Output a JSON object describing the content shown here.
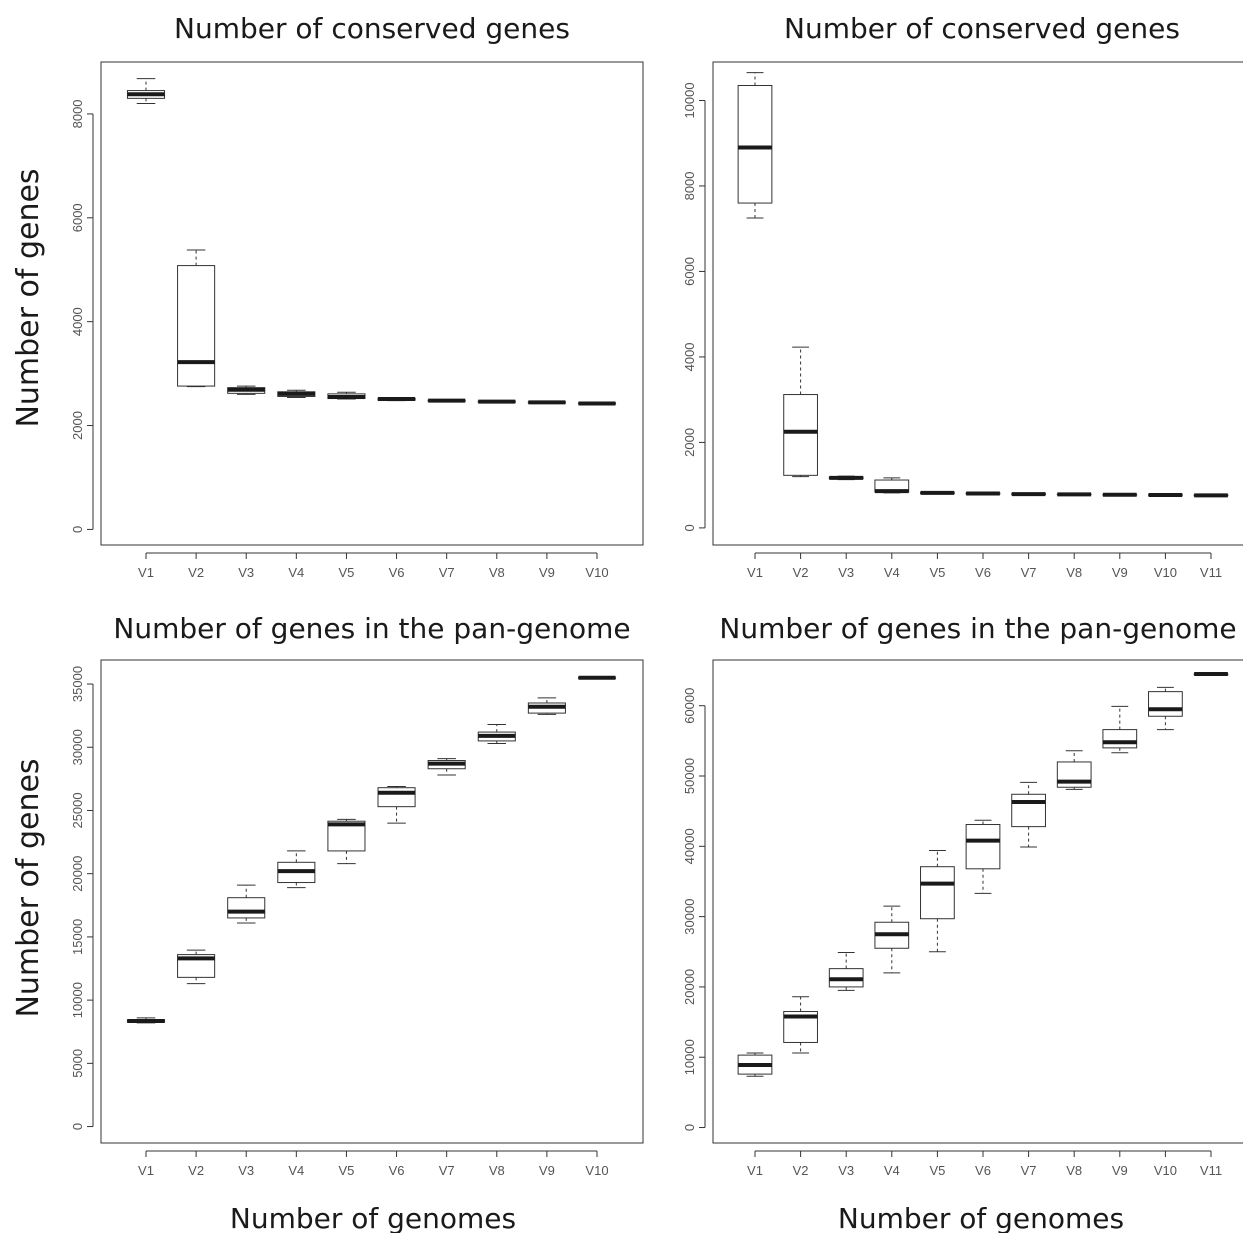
{
  "figure": {
    "shared_ylabel_top": "Number of genes",
    "shared_ylabel_bottom": "Number of genes",
    "shared_xlabel_left": "Number of genomes",
    "shared_xlabel_right": "Number of genomes"
  },
  "chart_data": [
    {
      "type": "boxplot",
      "title": "Number of conserved genes",
      "xlabel": "",
      "ylabel": "Number of genes",
      "ylim": [
        -300,
        9000
      ],
      "yticks": [
        0,
        2000,
        4000,
        6000,
        8000
      ],
      "categories": [
        "V1",
        "V2",
        "V3",
        "V4",
        "V5",
        "V6",
        "V7",
        "V8",
        "V9",
        "V10"
      ],
      "boxes": [
        {
          "min": 8200,
          "q1": 8300,
          "median": 8380,
          "q3": 8450,
          "max": 8680
        },
        {
          "min": 2750,
          "q1": 2760,
          "median": 3220,
          "q3": 5080,
          "max": 5380
        },
        {
          "min": 2600,
          "q1": 2620,
          "median": 2690,
          "q3": 2730,
          "max": 2760
        },
        {
          "min": 2540,
          "q1": 2560,
          "median": 2610,
          "q3": 2650,
          "max": 2680
        },
        {
          "min": 2510,
          "q1": 2520,
          "median": 2550,
          "q3": 2610,
          "max": 2640
        },
        {
          "min": 2480,
          "q1": 2490,
          "median": 2510,
          "q3": 2525,
          "max": 2540
        },
        {
          "min": 2460,
          "q1": 2470,
          "median": 2480,
          "q3": 2490,
          "max": 2500
        },
        {
          "min": 2440,
          "q1": 2450,
          "median": 2460,
          "q3": 2470,
          "max": 2480
        },
        {
          "min": 2430,
          "q1": 2435,
          "median": 2445,
          "q3": 2455,
          "max": 2460
        },
        {
          "min": 2415,
          "q1": 2420,
          "median": 2425,
          "q3": 2430,
          "max": 2435
        }
      ]
    },
    {
      "type": "boxplot",
      "title": "Number of conserved genes",
      "xlabel": "",
      "ylabel": "",
      "ylim": [
        -400,
        10900
      ],
      "yticks": [
        0,
        2000,
        4000,
        6000,
        8000,
        10000
      ],
      "categories": [
        "V1",
        "V2",
        "V3",
        "V4",
        "V5",
        "V6",
        "V7",
        "V8",
        "V9",
        "V10",
        "V11"
      ],
      "boxes": [
        {
          "min": 7250,
          "q1": 7600,
          "median": 8900,
          "q3": 10350,
          "max": 10650
        },
        {
          "min": 1200,
          "q1": 1230,
          "median": 2250,
          "q3": 3120,
          "max": 4230
        },
        {
          "min": 1130,
          "q1": 1150,
          "median": 1170,
          "q3": 1190,
          "max": 1210
        },
        {
          "min": 820,
          "q1": 840,
          "median": 860,
          "q3": 1120,
          "max": 1170
        },
        {
          "min": 800,
          "q1": 810,
          "median": 820,
          "q3": 830,
          "max": 840
        },
        {
          "min": 790,
          "q1": 795,
          "median": 805,
          "q3": 815,
          "max": 820
        },
        {
          "min": 780,
          "q1": 785,
          "median": 790,
          "q3": 800,
          "max": 805
        },
        {
          "min": 775,
          "q1": 780,
          "median": 785,
          "q3": 790,
          "max": 795
        },
        {
          "min": 765,
          "q1": 770,
          "median": 775,
          "q3": 780,
          "max": 785
        },
        {
          "min": 760,
          "q1": 765,
          "median": 770,
          "q3": 775,
          "max": 780
        },
        {
          "min": 755,
          "q1": 758,
          "median": 762,
          "q3": 766,
          "max": 770
        }
      ]
    },
    {
      "type": "boxplot",
      "title": "Number of genes in the pan-genome",
      "xlabel": "Number of genomes",
      "ylabel": "Number of genes",
      "ylim": [
        -1300,
        36900
      ],
      "yticks": [
        0,
        5000,
        10000,
        15000,
        20000,
        25000,
        30000,
        35000
      ],
      "categories": [
        "V1",
        "V2",
        "V3",
        "V4",
        "V5",
        "V6",
        "V7",
        "V8",
        "V9",
        "V10"
      ],
      "boxes": [
        {
          "min": 8200,
          "q1": 8250,
          "median": 8350,
          "q3": 8450,
          "max": 8600
        },
        {
          "min": 11300,
          "q1": 11800,
          "median": 13300,
          "q3": 13600,
          "max": 13950
        },
        {
          "min": 16100,
          "q1": 16500,
          "median": 17000,
          "q3": 18100,
          "max": 19100
        },
        {
          "min": 18900,
          "q1": 19300,
          "median": 20200,
          "q3": 20900,
          "max": 21800
        },
        {
          "min": 20800,
          "q1": 21800,
          "median": 23900,
          "q3": 24150,
          "max": 24300
        },
        {
          "min": 24000,
          "q1": 25300,
          "median": 26400,
          "q3": 26800,
          "max": 26900
        },
        {
          "min": 27800,
          "q1": 28300,
          "median": 28700,
          "q3": 28950,
          "max": 29100
        },
        {
          "min": 30300,
          "q1": 30500,
          "median": 30900,
          "q3": 31200,
          "max": 31800
        },
        {
          "min": 32600,
          "q1": 32700,
          "median": 33200,
          "q3": 33500,
          "max": 33900
        },
        {
          "min": 35500,
          "q1": 35500,
          "median": 35500,
          "q3": 35500,
          "max": 35500
        }
      ]
    },
    {
      "type": "boxplot",
      "title": "Number of genes in the pan-genome",
      "xlabel": "Number of genomes",
      "ylabel": "",
      "ylim": [
        -2200,
        66500
      ],
      "yticks": [
        0,
        10000,
        20000,
        30000,
        40000,
        50000,
        60000
      ],
      "categories": [
        "V1",
        "V2",
        "V3",
        "V4",
        "V5",
        "V6",
        "V7",
        "V8",
        "V9",
        "V10",
        "V11"
      ],
      "boxes": [
        {
          "min": 7300,
          "q1": 7600,
          "median": 8900,
          "q3": 10300,
          "max": 10600
        },
        {
          "min": 10600,
          "q1": 12100,
          "median": 15800,
          "q3": 16500,
          "max": 18600
        },
        {
          "min": 19500,
          "q1": 20000,
          "median": 21100,
          "q3": 22600,
          "max": 24900
        },
        {
          "min": 22000,
          "q1": 25500,
          "median": 27500,
          "q3": 29200,
          "max": 31500
        },
        {
          "min": 25000,
          "q1": 29700,
          "median": 34700,
          "q3": 37100,
          "max": 39400
        },
        {
          "min": 33300,
          "q1": 36800,
          "median": 40800,
          "q3": 43100,
          "max": 43700
        },
        {
          "min": 39900,
          "q1": 42800,
          "median": 46300,
          "q3": 47400,
          "max": 49100
        },
        {
          "min": 48100,
          "q1": 48400,
          "median": 49200,
          "q3": 52000,
          "max": 53600
        },
        {
          "min": 53300,
          "q1": 54000,
          "median": 54800,
          "q3": 56600,
          "max": 59900
        },
        {
          "min": 56600,
          "q1": 58500,
          "median": 59500,
          "q3": 62000,
          "max": 62600
        },
        {
          "min": 64500,
          "q1": 64500,
          "median": 64500,
          "q3": 64500,
          "max": 64500
        }
      ]
    }
  ]
}
